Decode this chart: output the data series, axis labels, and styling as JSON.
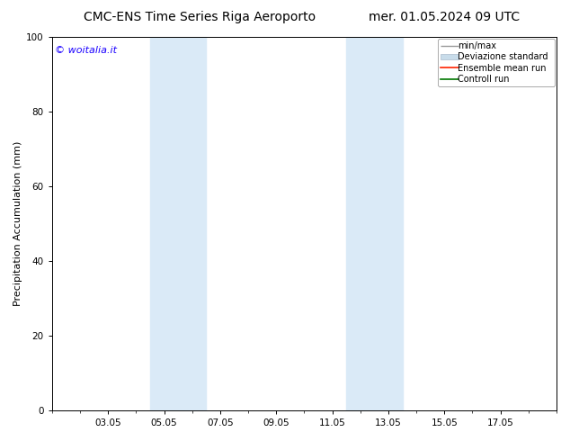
{
  "title_left": "CMC-ENS Time Series Riga Aeroporto",
  "title_right": "mer. 01.05.2024 09 UTC",
  "ylabel": "Precipitation Accumulation (mm)",
  "ylim": [
    0,
    100
  ],
  "yticks": [
    0,
    20,
    40,
    60,
    80,
    100
  ],
  "xtick_labels": [
    "03.05",
    "05.05",
    "07.05",
    "09.05",
    "11.05",
    "13.05",
    "15.05",
    "17.05"
  ],
  "xtick_positions": [
    2,
    4,
    6,
    8,
    10,
    12,
    14,
    16
  ],
  "x_min": 0,
  "x_max": 18,
  "shaded_bands": [
    {
      "x_start": 3.5,
      "x_end": 5.5
    },
    {
      "x_start": 10.5,
      "x_end": 12.5
    }
  ],
  "shaded_color": "#daeaf7",
  "background_color": "#ffffff",
  "watermark_text": "© woitalia.it",
  "watermark_color": "#1a00ff",
  "legend_labels": [
    "min/max",
    "Deviazione standard",
    "Ensemble mean run",
    "Controll run"
  ],
  "legend_colors": [
    "#999999",
    "#c8dcea",
    "#ff2200",
    "#007700"
  ],
  "title_fontsize": 10,
  "tick_fontsize": 7.5,
  "legend_fontsize": 7,
  "ylabel_fontsize": 8,
  "watermark_fontsize": 8
}
